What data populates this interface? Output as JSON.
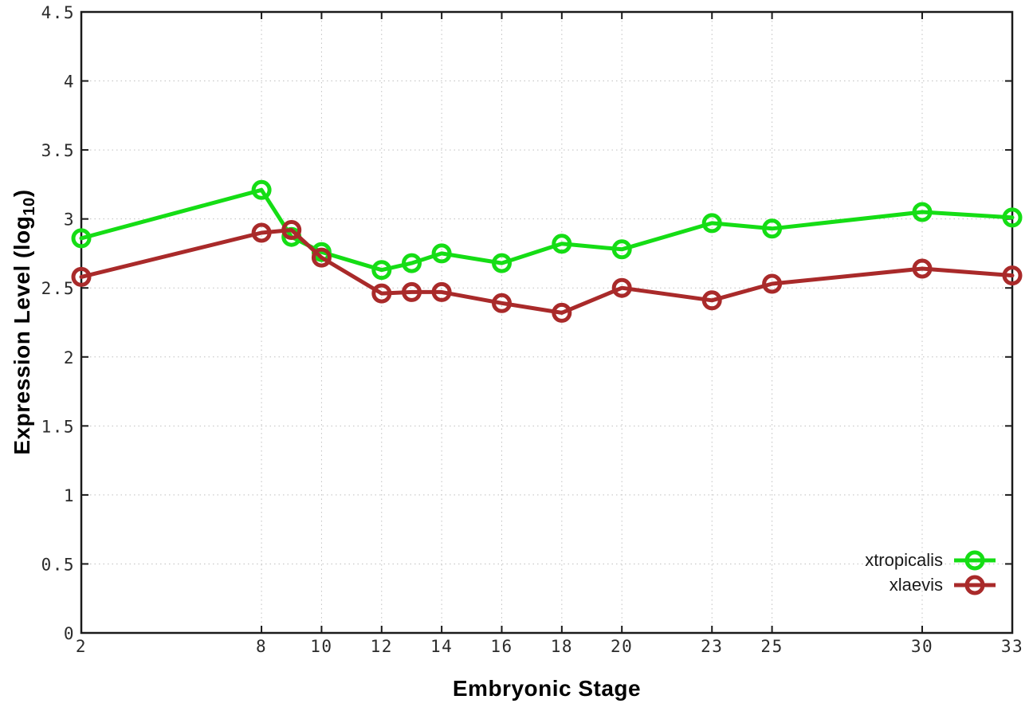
{
  "chart_data": {
    "type": "line",
    "title": "",
    "xlabel": "Embryonic Stage",
    "ylabel": "Expression Level (log10)",
    "ylabel_parts": {
      "prefix": "Expression Level (log",
      "subscript": "10",
      "suffix": ")"
    },
    "xlim": [
      2,
      33
    ],
    "ylim": [
      0,
      4.5
    ],
    "xticks": [
      2,
      8,
      10,
      12,
      14,
      16,
      18,
      20,
      23,
      25,
      30,
      33
    ],
    "yticks": [
      0,
      0.5,
      1,
      1.5,
      2,
      2.5,
      3,
      3.5,
      4,
      4.5
    ],
    "ytick_labels": [
      "0",
      "0.5",
      "1",
      "1.5",
      "2",
      "2.5",
      "3",
      "3.5",
      "4",
      "4.5"
    ],
    "grid": true,
    "legend_position": "inside-bottom-right",
    "x": [
      2,
      8,
      9,
      10,
      12,
      13,
      14,
      16,
      18,
      20,
      23,
      25,
      30,
      33
    ],
    "series": [
      {
        "name": "xtropicalis",
        "color": "#15dd15",
        "marker": "open-circle",
        "values": [
          2.86,
          3.21,
          2.87,
          2.76,
          2.63,
          2.68,
          2.75,
          2.68,
          2.82,
          2.78,
          2.97,
          2.93,
          3.05,
          3.01
        ]
      },
      {
        "name": "xlaevis",
        "color": "#a92a2a",
        "marker": "open-circle",
        "values": [
          2.58,
          2.9,
          2.92,
          2.72,
          2.46,
          2.47,
          2.47,
          2.39,
          2.32,
          2.5,
          2.41,
          2.53,
          2.64,
          2.59
        ]
      }
    ],
    "colors": {
      "axis": "#1a1a1a",
      "grid": "#c0c0c0",
      "tick_text": "#2b2b2b",
      "background": "#ffffff"
    }
  }
}
